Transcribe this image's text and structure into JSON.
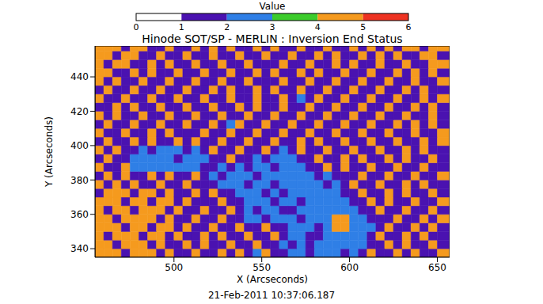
{
  "chart_data": {
    "type": "heatmap",
    "title": "Hinode SOT/SP - MERLIN : Inversion End Status",
    "x_label": "X (Arcseconds)",
    "y_label": "Y (Arcseconds)",
    "annotation": "21-Feb-2011 10:37:06.187",
    "x": [
      457.5,
      462.5,
      467.5,
      472.5,
      477.5,
      482.5,
      487.5,
      492.5,
      497.5,
      502.5,
      507.5,
      512.5,
      517.5,
      522.5,
      527.5,
      532.5,
      537.5,
      542.5,
      547.5,
      552.5,
      557.5,
      562.5,
      567.5,
      572.5,
      577.5,
      582.5,
      587.5,
      592.5,
      597.5,
      602.5,
      607.5,
      612.5,
      617.5,
      622.5,
      627.5,
      632.5,
      637.5,
      642.5,
      647.5,
      652.5
    ],
    "y": [
      337.5,
      342.5,
      347.5,
      352.5,
      357.5,
      362.5,
      367.5,
      372.5,
      377.5,
      382.5,
      387.5,
      392.5,
      397.5,
      402.5,
      407.5,
      412.5,
      417.5,
      422.5,
      427.5,
      432.5,
      437.5,
      442.5,
      447.5,
      452.5,
      457.5
    ],
    "cells": [
      [
        4,
        4,
        4,
        1,
        4,
        4,
        4,
        1,
        4,
        1,
        1,
        4,
        1,
        1,
        4,
        1,
        4,
        1,
        2,
        4,
        1,
        1,
        2,
        2,
        1,
        2,
        2,
        2,
        1,
        2,
        1,
        4,
        1,
        1,
        4,
        1,
        4,
        1,
        1,
        4
      ],
      [
        4,
        4,
        1,
        4,
        4,
        4,
        1,
        4,
        1,
        1,
        4,
        1,
        4,
        1,
        1,
        4,
        1,
        1,
        4,
        1,
        1,
        2,
        1,
        2,
        1,
        2,
        2,
        2,
        2,
        2,
        2,
        1,
        1,
        4,
        1,
        4,
        1,
        1,
        4,
        1
      ],
      [
        4,
        1,
        4,
        4,
        4,
        1,
        4,
        4,
        1,
        4,
        1,
        1,
        4,
        1,
        4,
        1,
        1,
        4,
        1,
        1,
        4,
        1,
        2,
        2,
        1,
        1,
        2,
        2,
        2,
        2,
        2,
        1,
        4,
        1,
        1,
        4,
        1,
        4,
        1,
        1
      ],
      [
        4,
        4,
        4,
        1,
        4,
        4,
        1,
        4,
        4,
        1,
        4,
        1,
        1,
        4,
        1,
        1,
        4,
        1,
        1,
        4,
        1,
        1,
        2,
        2,
        2,
        1,
        2,
        4,
        4,
        2,
        2,
        2,
        1,
        4,
        1,
        1,
        4,
        1,
        4,
        1
      ],
      [
        4,
        4,
        1,
        4,
        4,
        4,
        4,
        1,
        4,
        1,
        1,
        4,
        1,
        1,
        4,
        1,
        1,
        2,
        2,
        1,
        2,
        2,
        2,
        1,
        2,
        2,
        2,
        4,
        4,
        2,
        2,
        1,
        1,
        1,
        4,
        1,
        1,
        4,
        1,
        4
      ],
      [
        4,
        1,
        4,
        4,
        1,
        4,
        4,
        4,
        1,
        4,
        1,
        1,
        4,
        1,
        1,
        4,
        1,
        2,
        1,
        2,
        2,
        1,
        1,
        2,
        2,
        2,
        2,
        2,
        2,
        2,
        1,
        1,
        4,
        1,
        1,
        4,
        1,
        1,
        4,
        1
      ],
      [
        4,
        4,
        4,
        1,
        4,
        4,
        1,
        4,
        4,
        1,
        4,
        1,
        1,
        1,
        4,
        1,
        1,
        2,
        2,
        2,
        1,
        2,
        2,
        1,
        2,
        2,
        2,
        2,
        2,
        1,
        1,
        4,
        1,
        4,
        1,
        1,
        4,
        1,
        1,
        4
      ],
      [
        1,
        4,
        4,
        4,
        1,
        4,
        4,
        1,
        4,
        1,
        1,
        4,
        1,
        4,
        1,
        1,
        2,
        2,
        2,
        1,
        2,
        1,
        2,
        2,
        2,
        2,
        2,
        2,
        1,
        1,
        4,
        1,
        1,
        4,
        1,
        4,
        1,
        1,
        4,
        1
      ],
      [
        4,
        1,
        4,
        1,
        4,
        1,
        1,
        4,
        1,
        1,
        4,
        1,
        1,
        1,
        2,
        2,
        2,
        1,
        2,
        2,
        1,
        2,
        2,
        2,
        2,
        2,
        1,
        2,
        1,
        4,
        1,
        1,
        4,
        1,
        1,
        4,
        1,
        4,
        1,
        1
      ],
      [
        1,
        4,
        1,
        4,
        1,
        1,
        4,
        1,
        4,
        1,
        1,
        4,
        1,
        2,
        1,
        2,
        2,
        2,
        1,
        2,
        2,
        2,
        2,
        2,
        2,
        1,
        2,
        1,
        1,
        1,
        4,
        1,
        1,
        4,
        1,
        1,
        4,
        1,
        1,
        4
      ],
      [
        4,
        1,
        1,
        4,
        2,
        2,
        2,
        2,
        2,
        2,
        2,
        2,
        1,
        1,
        2,
        1,
        2,
        1,
        2,
        2,
        1,
        2,
        2,
        2,
        1,
        1,
        4,
        1,
        4,
        1,
        1,
        4,
        1,
        1,
        4,
        1,
        1,
        4,
        1,
        1
      ],
      [
        1,
        4,
        1,
        1,
        2,
        2,
        2,
        2,
        2,
        1,
        2,
        2,
        2,
        1,
        1,
        4,
        1,
        1,
        2,
        1,
        2,
        2,
        2,
        1,
        1,
        4,
        1,
        1,
        4,
        1,
        4,
        1,
        1,
        4,
        1,
        4,
        1,
        1,
        4,
        1
      ],
      [
        4,
        1,
        4,
        1,
        1,
        2,
        1,
        2,
        2,
        2,
        1,
        2,
        1,
        4,
        1,
        1,
        4,
        1,
        1,
        4,
        1,
        2,
        1,
        4,
        1,
        1,
        4,
        1,
        1,
        4,
        1,
        1,
        4,
        1,
        1,
        4,
        1,
        4,
        1,
        1
      ],
      [
        1,
        4,
        1,
        1,
        4,
        1,
        4,
        1,
        1,
        4,
        1,
        4,
        1,
        1,
        4,
        1,
        1,
        4,
        1,
        1,
        4,
        1,
        1,
        4,
        1,
        4,
        1,
        1,
        4,
        1,
        1,
        4,
        1,
        1,
        4,
        1,
        1,
        4,
        1,
        4
      ],
      [
        4,
        1,
        1,
        4,
        1,
        1,
        4,
        1,
        4,
        1,
        1,
        1,
        4,
        1,
        1,
        4,
        1,
        1,
        4,
        1,
        1,
        4,
        1,
        1,
        4,
        1,
        1,
        4,
        1,
        1,
        4,
        1,
        1,
        4,
        1,
        1,
        4,
        1,
        1,
        4
      ],
      [
        1,
        4,
        1,
        1,
        4,
        1,
        1,
        4,
        1,
        1,
        4,
        1,
        1,
        4,
        1,
        2,
        4,
        1,
        1,
        4,
        1,
        1,
        4,
        1,
        1,
        4,
        1,
        1,
        4,
        1,
        1,
        4,
        1,
        1,
        4,
        1,
        4,
        1,
        4,
        1
      ],
      [
        4,
        1,
        4,
        1,
        1,
        4,
        1,
        1,
        4,
        1,
        1,
        4,
        1,
        1,
        4,
        1,
        1,
        4,
        1,
        1,
        4,
        1,
        1,
        4,
        1,
        1,
        4,
        1,
        1,
        4,
        1,
        1,
        4,
        1,
        1,
        4,
        1,
        1,
        4,
        1
      ],
      [
        1,
        1,
        4,
        1,
        4,
        1,
        1,
        4,
        1,
        1,
        4,
        1,
        1,
        4,
        1,
        1,
        4,
        1,
        4,
        1,
        1,
        4,
        1,
        1,
        4,
        1,
        1,
        4,
        1,
        1,
        4,
        1,
        1,
        4,
        1,
        1,
        4,
        1,
        4,
        1
      ],
      [
        4,
        1,
        1,
        4,
        1,
        1,
        4,
        1,
        1,
        4,
        1,
        1,
        4,
        1,
        1,
        4,
        1,
        1,
        4,
        1,
        1,
        4,
        1,
        2,
        1,
        4,
        1,
        1,
        4,
        1,
        1,
        4,
        1,
        1,
        4,
        1,
        1,
        4,
        1,
        4
      ],
      [
        1,
        4,
        1,
        1,
        4,
        1,
        1,
        4,
        1,
        1,
        4,
        1,
        1,
        4,
        1,
        4,
        1,
        1,
        4,
        1,
        4,
        1,
        1,
        4,
        1,
        1,
        4,
        1,
        1,
        4,
        1,
        1,
        4,
        1,
        1,
        4,
        1,
        4,
        1,
        1
      ],
      [
        4,
        1,
        4,
        1,
        1,
        4,
        1,
        1,
        4,
        1,
        1,
        4,
        1,
        1,
        4,
        1,
        1,
        4,
        1,
        1,
        1,
        4,
        1,
        1,
        4,
        1,
        1,
        4,
        1,
        1,
        4,
        1,
        1,
        4,
        1,
        1,
        4,
        1,
        1,
        4
      ],
      [
        4,
        4,
        1,
        1,
        4,
        1,
        4,
        1,
        1,
        4,
        1,
        1,
        4,
        1,
        1,
        4,
        1,
        1,
        4,
        1,
        4,
        1,
        1,
        4,
        1,
        4,
        1,
        1,
        4,
        1,
        1,
        4,
        1,
        1,
        4,
        1,
        4,
        1,
        4,
        1
      ],
      [
        4,
        1,
        4,
        4,
        1,
        1,
        4,
        1,
        4,
        1,
        1,
        4,
        1,
        1,
        4,
        1,
        1,
        4,
        1,
        1,
        1,
        4,
        1,
        1,
        4,
        1,
        1,
        4,
        1,
        4,
        1,
        1,
        4,
        1,
        1,
        4,
        1,
        1,
        4,
        4
      ],
      [
        4,
        4,
        1,
        4,
        4,
        1,
        1,
        4,
        1,
        1,
        4,
        1,
        1,
        4,
        1,
        1,
        4,
        1,
        1,
        4,
        1,
        1,
        4,
        1,
        1,
        4,
        1,
        4,
        1,
        1,
        4,
        1,
        4,
        1,
        4,
        1,
        1,
        4,
        4,
        1
      ],
      [
        4,
        4,
        4,
        1,
        4,
        4,
        1,
        1,
        4,
        1,
        1,
        4,
        1,
        4,
        1,
        4,
        1,
        1,
        4,
        1,
        4,
        1,
        1,
        4,
        1,
        1,
        4,
        1,
        1,
        4,
        1,
        4,
        1,
        4,
        1,
        4,
        4,
        1,
        4,
        4
      ]
    ],
    "xlim": [
      455,
      657
    ],
    "ylim": [
      335,
      458
    ],
    "xticks": [
      500,
      550,
      600,
      650
    ],
    "yticks": [
      340,
      360,
      380,
      400,
      420,
      440
    ],
    "colorbar": {
      "label": "Value",
      "range": [
        0,
        6
      ],
      "ticks": [
        0,
        1,
        2,
        3,
        4,
        5,
        6
      ],
      "colors": [
        "#ffffff",
        "#4a12b0",
        "#2f7fe6",
        "#3ccc2c",
        "#f59a1e",
        "#ee3322"
      ]
    }
  }
}
